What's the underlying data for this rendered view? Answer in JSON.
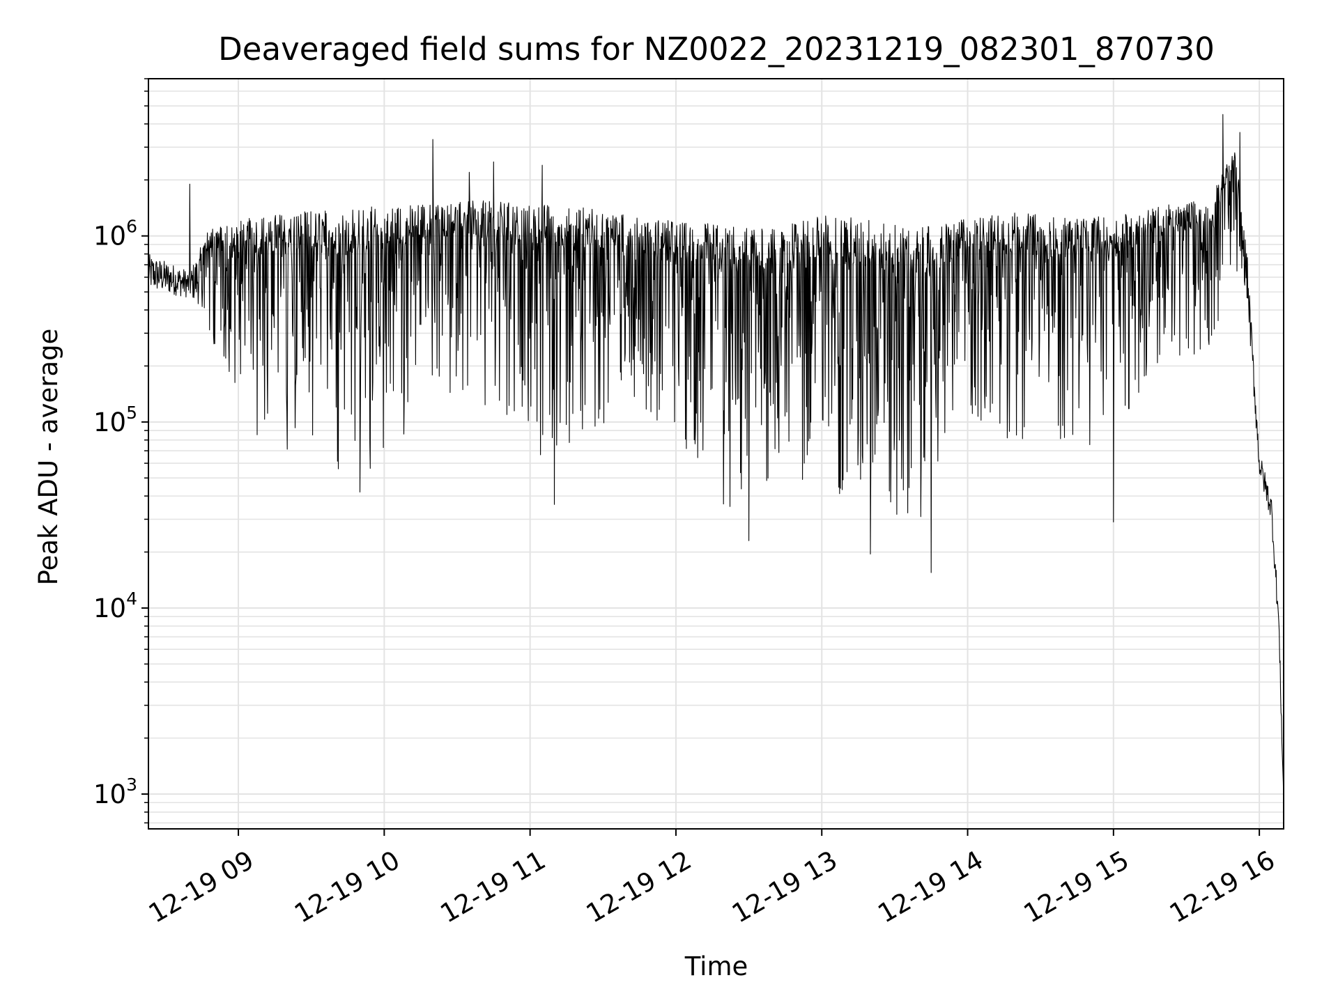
{
  "chart_data": {
    "type": "line",
    "title": "Deaveraged field sums for NZ0022_20231219_082301_870730",
    "xlabel": "Time",
    "ylabel": "Peak ADU - average",
    "yscale": "log",
    "ylim": [
      650,
      7000000
    ],
    "xlim": [
      "2023-12-19T08:23:00",
      "2023-12-19T16:10:00"
    ],
    "grid": true,
    "line_color": "#000000",
    "x_ticks": [
      {
        "label": "12-19 09",
        "value": "2023-12-19T09:00:00"
      },
      {
        "label": "12-19 10",
        "value": "2023-12-19T10:00:00"
      },
      {
        "label": "12-19 11",
        "value": "2023-12-19T11:00:00"
      },
      {
        "label": "12-19 12",
        "value": "2023-12-19T12:00:00"
      },
      {
        "label": "12-19 13",
        "value": "2023-12-19T13:00:00"
      },
      {
        "label": "12-19 14",
        "value": "2023-12-19T14:00:00"
      },
      {
        "label": "12-19 15",
        "value": "2023-12-19T15:00:00"
      },
      {
        "label": "12-19 16",
        "value": "2023-12-19T16:00:00"
      }
    ],
    "y_ticks": [
      {
        "base": "10",
        "exp": "3",
        "value": 1000
      },
      {
        "base": "10",
        "exp": "4",
        "value": 10000
      },
      {
        "base": "10",
        "exp": "5",
        "value": 100000
      },
      {
        "base": "10",
        "exp": "6",
        "value": 1000000
      }
    ],
    "envelope": {
      "x": [
        "2023-12-19T08:23:00",
        "2023-12-19T08:40:00",
        "2023-12-19T08:48:00",
        "2023-12-19T09:10:00",
        "2023-12-19T09:40:00",
        "2023-12-19T10:00:00",
        "2023-12-19T10:20:00",
        "2023-12-19T10:40:00",
        "2023-12-19T11:00:00",
        "2023-12-19T11:20:00",
        "2023-12-19T11:40:00",
        "2023-12-19T12:00:00",
        "2023-12-19T12:20:00",
        "2023-12-19T12:40:00",
        "2023-12-19T13:00:00",
        "2023-12-19T13:20:00",
        "2023-12-19T13:40:00",
        "2023-12-19T14:00:00",
        "2023-12-19T14:20:00",
        "2023-12-19T14:40:00",
        "2023-12-19T15:00:00",
        "2023-12-19T15:20:00",
        "2023-12-19T15:40:00",
        "2023-12-19T15:50:00",
        "2023-12-19T15:55:00",
        "2023-12-19T16:00:00",
        "2023-12-19T16:05:00",
        "2023-12-19T16:08:00",
        "2023-12-19T16:10:00"
      ],
      "upper": [
        800000,
        650000,
        1100000,
        1300000,
        1400000,
        1450000,
        1500000,
        1550000,
        1500000,
        1450000,
        1300000,
        1200000,
        1150000,
        1100000,
        1300000,
        1250000,
        1100000,
        1250000,
        1350000,
        1250000,
        1300000,
        1450000,
        1600000,
        3000000,
        800000,
        70000,
        40000,
        10000,
        1000
      ],
      "lower": [
        420000,
        400000,
        250000,
        70000,
        55000,
        55000,
        150000,
        120000,
        60000,
        80000,
        120000,
        90000,
        30000,
        50000,
        45000,
        35000,
        25000,
        110000,
        70000,
        80000,
        70000,
        180000,
        250000,
        700000,
        350000,
        45000,
        25000,
        6000,
        800
      ]
    },
    "peaks": [
      {
        "x": "2023-12-19T08:40:00",
        "y": 1900000
      },
      {
        "x": "2023-12-19T10:20:00",
        "y": 3300000
      },
      {
        "x": "2023-12-19T10:35:00",
        "y": 2200000
      },
      {
        "x": "2023-12-19T10:45:00",
        "y": 2500000
      },
      {
        "x": "2023-12-19T11:05:00",
        "y": 2400000
      },
      {
        "x": "2023-12-19T15:45:00",
        "y": 4500000
      },
      {
        "x": "2023-12-19T15:52:00",
        "y": 3600000
      }
    ],
    "dips": [
      {
        "x": "2023-12-19T09:50:00",
        "y": 42000
      },
      {
        "x": "2023-12-19T11:10:00",
        "y": 36000
      },
      {
        "x": "2023-12-19T12:30:00",
        "y": 23000
      },
      {
        "x": "2023-12-19T13:20:00",
        "y": 19500
      },
      {
        "x": "2023-12-19T13:45:00",
        "y": 15500
      },
      {
        "x": "2023-12-19T15:00:00",
        "y": 29000
      }
    ]
  }
}
